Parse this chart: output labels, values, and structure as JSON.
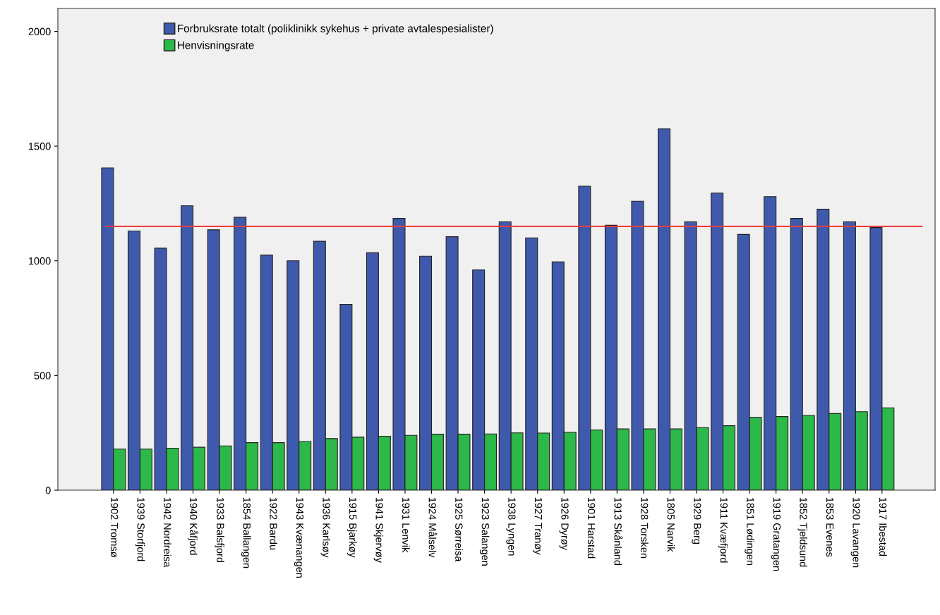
{
  "chart_data": {
    "type": "bar",
    "categories": [
      "1902 Tromsø",
      "1939 Storfjord",
      "1942 Nordreisa",
      "1940 Kåfjord",
      "1933 Balsfjord",
      "1854 Ballangen",
      "1922 Bardu",
      "1943 Kvænangen",
      "1936 Karlsøy",
      "1915 Bjarkøy",
      "1941 Skjervøy",
      "1931 Lenvik",
      "1924 Målselv",
      "1925 Sørreisa",
      "1923 Salangen",
      "1938 Lyngen",
      "1927 Tranøy",
      "1926 Dyrøy",
      "1901 Harstad",
      "1913 Skånland",
      "1928 Torsken",
      "1805 Narvik",
      "1929 Berg",
      "1911 Kvæfjord",
      "1851 Lødingen",
      "1919 Gratangen",
      "1852 Tjeldsund",
      "1853 Evenes",
      "1920 Lavangen",
      "1917 Ibestad"
    ],
    "series": [
      {
        "name": "Forbruksrate totalt (poliklinikk sykehus + private avtalespesialister)",
        "color": "#3f5aad",
        "values": [
          1405,
          1130,
          1055,
          1240,
          1135,
          1190,
          1025,
          1000,
          1085,
          810,
          1035,
          1185,
          1020,
          1105,
          960,
          1170,
          1100,
          995,
          1325,
          1155,
          1260,
          1575,
          1170,
          1295,
          1115,
          1280,
          1185,
          1225,
          1170,
          1145
        ]
      },
      {
        "name": "Henvisningsrate",
        "color": "#2db84a",
        "values": [
          179,
          179,
          183,
          187,
          193,
          207,
          207,
          212,
          225,
          231,
          235,
          239,
          244,
          244,
          245,
          250,
          249,
          252,
          262,
          267,
          267,
          267,
          273,
          281,
          317,
          321,
          326,
          334,
          342,
          359
        ]
      }
    ],
    "ylim": [
      0,
      2100
    ],
    "yticks": [
      0,
      500,
      1000,
      1500,
      2000
    ],
    "ref_lines": [
      {
        "axis": "y",
        "value": 1150,
        "color": "#ee3b3b"
      }
    ],
    "legend": "top left",
    "grid": false
  }
}
